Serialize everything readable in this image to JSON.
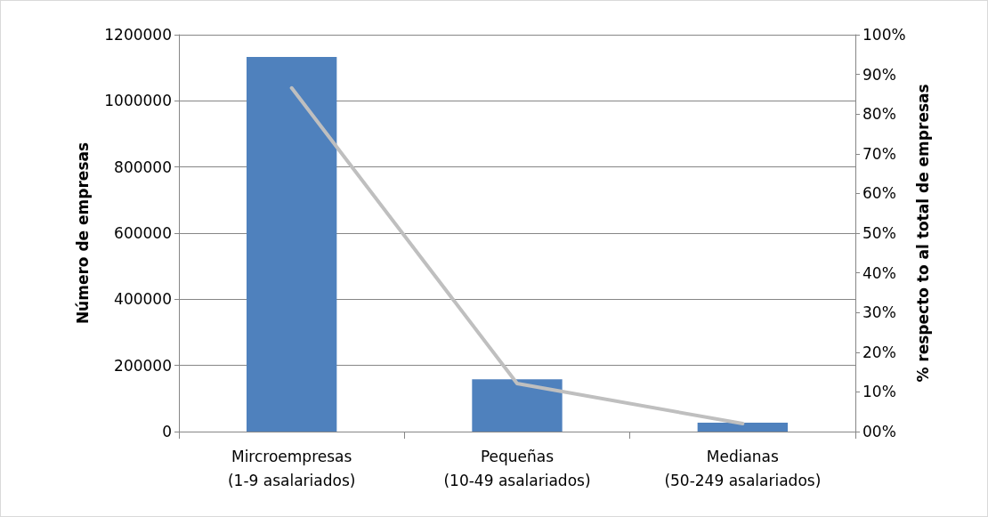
{
  "chart_data": {
    "type": "bar",
    "ylabel": "Número de empresas",
    "y2label": "% respecto to al total de empresas",
    "categories": [
      "Mircroempresas\n(1-9 asalariados)",
      "Pequeñas\n(10-49 asalariados)",
      "Medianas\n(50-249 asalariados)"
    ],
    "series": [
      {
        "color": "#4f81bd",
        "values": [
          1133000,
          158000,
          27000
        ]
      },
      {
        "type": "line",
        "axis": "y2",
        "color": "#bfbfbf",
        "values": [
          86.6,
          12.1,
          2.0
        ]
      }
    ],
    "ylim": [
      0,
      1200000
    ],
    "yticks": [
      0,
      200000,
      400000,
      600000,
      800000,
      1000000,
      1200000
    ],
    "y2lim": [
      0,
      100
    ],
    "y2ticks": [
      {
        "value": 0,
        "label": "00%"
      },
      {
        "value": 10,
        "label": "10%"
      },
      {
        "value": 20,
        "label": "20%"
      },
      {
        "value": 30,
        "label": "30%"
      },
      {
        "value": 40,
        "label": "40%"
      },
      {
        "value": 50,
        "label": "50%"
      },
      {
        "value": 60,
        "label": "60%"
      },
      {
        "value": 70,
        "label": "70%"
      },
      {
        "value": 80,
        "label": "80%"
      },
      {
        "value": 90,
        "label": "90%"
      },
      {
        "value": 100,
        "label": "100%"
      }
    ],
    "grid": "y",
    "marker": "none",
    "line_style": "solid"
  }
}
